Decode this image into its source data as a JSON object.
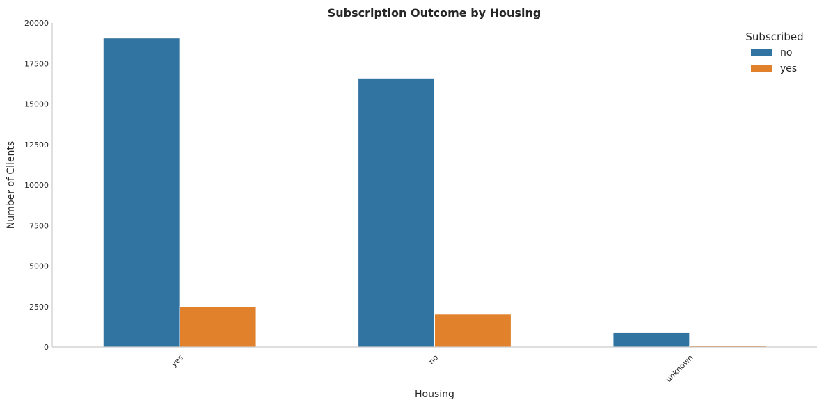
{
  "chart_data": {
    "type": "bar",
    "title": "Subscription Outcome by Housing",
    "xlabel": "Housing",
    "ylabel": "Number of Clients",
    "categories": [
      "yes",
      "no",
      "unknown"
    ],
    "series": [
      {
        "name": "no",
        "values": [
          19069,
          16596,
          883
        ],
        "color": "#3274a1"
      },
      {
        "name": "yes",
        "values": [
          2507,
          2026,
          107
        ],
        "color": "#e1812c"
      }
    ],
    "ylim": [
      0,
      20000
    ],
    "yticks": [
      0,
      2500,
      5000,
      7500,
      10000,
      12500,
      15000,
      17500,
      20000
    ],
    "grid": false,
    "legend": {
      "title": "Subscribed",
      "placement": "top-right"
    }
  }
}
